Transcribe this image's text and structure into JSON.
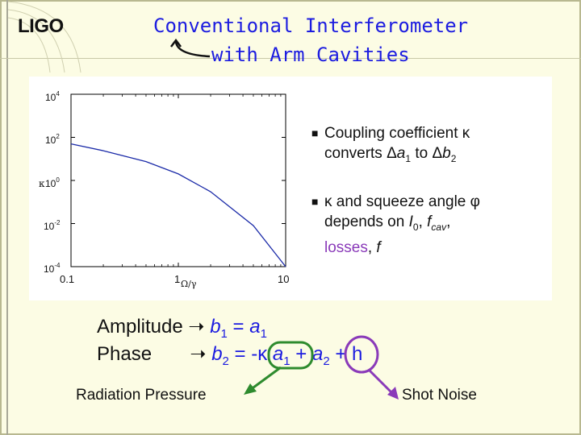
{
  "header": {
    "logo": "LIGO",
    "title_line1": "Conventional Interferometer",
    "title_line2": "with Arm Cavities"
  },
  "chart_data": {
    "type": "line",
    "yscale": "log",
    "xscale": "log",
    "xlabel": "Ω/γ",
    "ylabel": "κ",
    "xlim": [
      0.1,
      10
    ],
    "ylim": [
      0.0001,
      10000
    ],
    "x_ticks": [
      "0.1",
      "1",
      "10"
    ],
    "y_ticks": [
      "10^4",
      "10^2",
      "10^0",
      "10^-2",
      "10^-4"
    ],
    "series": [
      {
        "x": [
          0.1,
          0.2,
          0.5,
          1,
          2,
          5,
          10
        ],
        "y": [
          50,
          24,
          7.5,
          2,
          0.3,
          0.008,
          0.0001
        ]
      }
    ]
  },
  "bullets": {
    "b1_line1": "Coupling coefficient κ",
    "b1_line2_pre": "converts Δ",
    "b1_line2_a": "a",
    "b1_line2_sub1": "1",
    "b1_line2_mid": " to Δ",
    "b1_line2_b": "b",
    "b1_line2_sub2": "2",
    "b2_line1": "κ and squeeze angle φ",
    "b2_line2_pre": "depends on ",
    "b2_I": "I",
    "b2_I_sub": "0",
    "b2_mid": ", ",
    "b2_f": "f",
    "b2_f_sub": "cav",
    "b2_comma": ",",
    "b2_losses": "losses",
    "b2_end": ",  ",
    "b2_freq": "f"
  },
  "equations": {
    "amp_label": "Amplitude",
    "amp_b": "b",
    "amp_b_sub": "1",
    "amp_eq": " = ",
    "amp_a": "a",
    "amp_a_sub": "1",
    "phase_label": "Phase",
    "ph_b": "b",
    "ph_b_sub": "2",
    "ph_eq": " = -κ ",
    "ph_a1": "a",
    "ph_a1_sub": "1",
    "ph_plus1": " + ",
    "ph_a2": "a",
    "ph_a2_sub": "2",
    "ph_rest": " + h"
  },
  "labels": {
    "radiation_pressure": "Radiation Pressure",
    "shot_noise": "Shot Noise"
  },
  "colors": {
    "title": "#1c1ce0",
    "accent_green": "#2e8b2e",
    "accent_purple": "#8a3ab9",
    "curve": "#1a2aa8"
  }
}
